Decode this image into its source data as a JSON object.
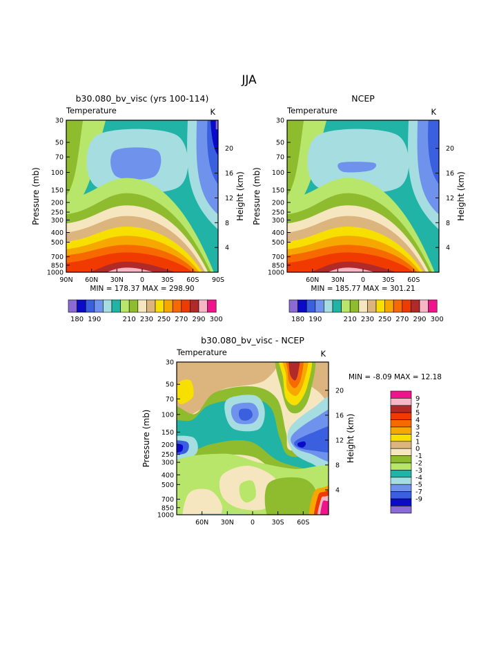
{
  "page_title": "JJA",
  "colors": {
    "c01": "#8a6bd6",
    "c02": "#0a0ac8",
    "c03": "#3a5fdf",
    "c04": "#6f92ec",
    "c05": "#a6dde0",
    "c06": "#21b3a6",
    "c07": "#b7e66a",
    "c08": "#8fbc2f",
    "c09": "#f5e6c0",
    "c10": "#dcb47e",
    "c11": "#f7df00",
    "c12": "#f6a800",
    "c13": "#f66a00",
    "c14": "#f03a00",
    "c15": "#b02a2a",
    "c16": "#f7b6c6",
    "c17": "#f0148c"
  },
  "chart_data": [
    {
      "type": "heatmap",
      "title": "b30.080_bv_visc (yrs 100-114)",
      "subtitle_left": "Temperature",
      "subtitle_right": "K",
      "ylabel": "Pressure (mb)",
      "ylabel_right": "Height (km)",
      "y_scale": "log",
      "ylim": [
        1000,
        30
      ],
      "yticks": [
        "30",
        "50",
        "70",
        "100",
        "150",
        "200",
        "250",
        "300",
        "400",
        "500",
        "700",
        "850",
        "1000"
      ],
      "xlim": [
        90,
        -90
      ],
      "xticks": [
        "90N",
        "60N",
        "30N",
        "0",
        "30S",
        "60S",
        "90S"
      ],
      "height_ticks": [
        "20",
        "16",
        "12",
        "8",
        "4"
      ],
      "min_max_text": "MIN = 178.37   MAX = 298.90",
      "colorbar": {
        "orientation": "horizontal",
        "levels": [
          175,
          180,
          185,
          190,
          195,
          200,
          205,
          210,
          220,
          230,
          240,
          250,
          260,
          270,
          280,
          290,
          295,
          300
        ],
        "labels": [
          "180",
          "190",
          "210",
          "230",
          "250",
          "270",
          "290",
          "300"
        ],
        "colors": [
          "c01",
          "c02",
          "c03",
          "c04",
          "c05",
          "c06",
          "c07",
          "c08",
          "c09",
          "c10",
          "c11",
          "c12",
          "c13",
          "c14",
          "c15",
          "c16",
          "c17"
        ]
      }
    },
    {
      "type": "heatmap",
      "title": "NCEP",
      "subtitle_left": "Temperature",
      "subtitle_right": "K",
      "ylabel": "Pressure (mb)",
      "ylabel_right": "Height (km)",
      "y_scale": "log",
      "ylim": [
        1000,
        30
      ],
      "yticks": [
        "30",
        "50",
        "70",
        "100",
        "150",
        "200",
        "250",
        "300",
        "400",
        "500",
        "700",
        "850",
        "1000"
      ],
      "xlim": [
        90,
        -90
      ],
      "xticks": [
        "60N",
        "30N",
        "0",
        "30S",
        "60S"
      ],
      "height_ticks": [
        "20",
        "16",
        "12",
        "8",
        "4"
      ],
      "min_max_text": "MIN = 185.77   MAX = 301.21",
      "colorbar": {
        "orientation": "horizontal",
        "levels": [
          175,
          180,
          185,
          190,
          195,
          200,
          205,
          210,
          220,
          230,
          240,
          250,
          260,
          270,
          280,
          290,
          295,
          300
        ],
        "labels": [
          "180",
          "190",
          "210",
          "230",
          "250",
          "270",
          "290",
          "300"
        ],
        "colors": [
          "c01",
          "c02",
          "c03",
          "c04",
          "c05",
          "c06",
          "c07",
          "c08",
          "c09",
          "c10",
          "c11",
          "c12",
          "c13",
          "c14",
          "c15",
          "c16",
          "c17"
        ]
      }
    },
    {
      "type": "heatmap",
      "title": "b30.080_bv_visc - NCEP",
      "subtitle_left": "Temperature",
      "subtitle_right": "K",
      "ylabel": "Pressure (mb)",
      "ylabel_right": "Height (km)",
      "y_scale": "log",
      "ylim": [
        1000,
        30
      ],
      "yticks": [
        "30",
        "50",
        "70",
        "100",
        "150",
        "200",
        "250",
        "300",
        "400",
        "500",
        "700",
        "850",
        "1000"
      ],
      "xlim": [
        90,
        -90
      ],
      "xticks": [
        "60N",
        "30N",
        "0",
        "30S",
        "60S"
      ],
      "height_ticks": [
        "20",
        "16",
        "12",
        "8",
        "4"
      ],
      "min_max_text": "MIN =   -8.09   MAX =   12.18",
      "colorbar": {
        "orientation": "vertical",
        "labels": [
          "9",
          "7",
          "5",
          "4",
          "3",
          "2",
          "1",
          "0",
          "-1",
          "-2",
          "-3",
          "-4",
          "-5",
          "-7",
          "-9"
        ],
        "colors": [
          "c17",
          "c16",
          "c15",
          "c14",
          "c13",
          "c12",
          "c11",
          "c10",
          "c09",
          "c08",
          "c07",
          "c06",
          "c05",
          "c04",
          "c03",
          "c02",
          "c01"
        ]
      }
    }
  ]
}
